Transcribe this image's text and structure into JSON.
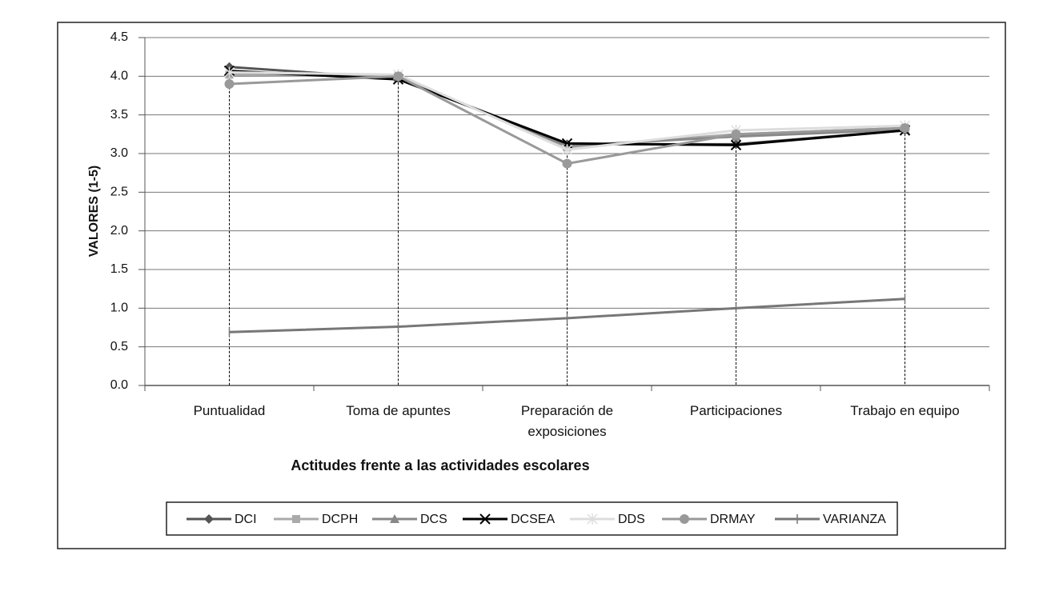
{
  "chart_data": {
    "type": "line",
    "y_label": "VALORES (1-5)",
    "x_label": "Actitudes frente a las actividades escolares",
    "categories": [
      "Puntualidad",
      "Toma de apuntes",
      "Preparación de exposiciones",
      "Participaciones",
      "Trabajo en equipo"
    ],
    "series": [
      {
        "name": "DCI",
        "color": "#555555",
        "marker": "diamond",
        "values": [
          4.12,
          3.97,
          3.12,
          3.12,
          3.3
        ]
      },
      {
        "name": "DCPH",
        "color": "#aaaaaa",
        "marker": "square",
        "values": [
          4.02,
          4.0,
          3.08,
          3.25,
          3.33
        ]
      },
      {
        "name": "DCS",
        "color": "#888888",
        "marker": "triangle",
        "values": [
          4.05,
          3.98,
          3.1,
          3.22,
          3.31
        ]
      },
      {
        "name": "DCSEA",
        "color": "#000000",
        "marker": "x",
        "values": [
          4.07,
          3.96,
          3.13,
          3.11,
          3.3
        ]
      },
      {
        "name": "DDS",
        "color": "#dddddd",
        "marker": "star",
        "values": [
          4.05,
          4.02,
          3.05,
          3.3,
          3.36
        ]
      },
      {
        "name": "DRMAY",
        "color": "#999999",
        "marker": "circle",
        "values": [
          3.9,
          4.0,
          2.87,
          3.25,
          3.33
        ]
      },
      {
        "name": "VARIANZA",
        "color": "#777777",
        "marker": "plus",
        "values": [
          0.69,
          0.76,
          0.87,
          1.0,
          1.12
        ]
      }
    ],
    "ylim": [
      0,
      4.5
    ],
    "yticks": [
      {
        "value": 0,
        "label": "0.0"
      },
      0.5,
      {
        "value": 1,
        "label": "1.0"
      },
      1.5,
      {
        "value": 2,
        "label": "2.0"
      },
      2.5,
      {
        "value": 3,
        "label": "3.0"
      },
      3.5,
      {
        "value": 4,
        "label": "4.0"
      },
      4.5
    ],
    "grid": true,
    "legend": "bottom"
  }
}
